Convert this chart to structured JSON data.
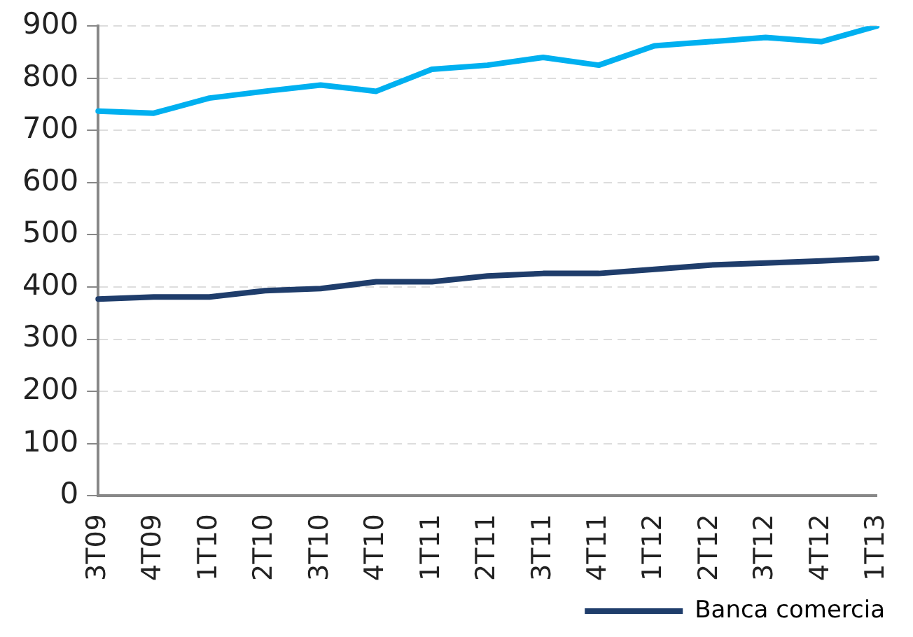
{
  "chart_data": {
    "type": "line",
    "categories": [
      "3T09",
      "4T09",
      "1T10",
      "2T10",
      "3T10",
      "4T10",
      "1T11",
      "2T11",
      "3T11",
      "4T11",
      "1T12",
      "2T12",
      "3T12",
      "4T12",
      "1T13"
    ],
    "series": [
      {
        "color": "#00b0f0",
        "values": [
          737,
          733,
          762,
          775,
          787,
          775,
          817,
          825,
          840,
          825,
          862,
          870,
          878,
          870,
          900
        ]
      },
      {
        "name": "Banca comercia",
        "color": "#1f3d6b",
        "values": [
          377,
          381,
          381,
          393,
          397,
          410,
          410,
          421,
          426,
          426,
          434,
          442,
          446,
          450,
          455
        ]
      }
    ],
    "ylim": [
      0,
      900
    ],
    "yticks": [
      0,
      100,
      200,
      300,
      400,
      500,
      600,
      700,
      800,
      900
    ],
    "grid": "y",
    "legend": "bottom right",
    "marker": "none",
    "line_style": "solid"
  }
}
